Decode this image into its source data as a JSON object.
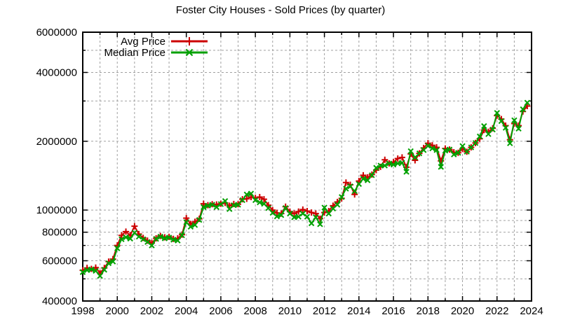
{
  "title": "Foster City Houses - Sold Prices (by quarter)",
  "colors": {
    "avg_series": "#cc0000",
    "median_series": "#00a000",
    "grid": "#a0a0a0",
    "axis": "#000000",
    "background": "#ffffff"
  },
  "legend": {
    "entries": [
      {
        "label": "Avg Price",
        "marker": "plus",
        "color": "#cc0000"
      },
      {
        "label": "Median Price",
        "marker": "x-cross",
        "color": "#00a000"
      }
    ],
    "position": "top-left-inside"
  },
  "chart_data": {
    "type": "line",
    "title": "Foster City Houses - Sold Prices (by quarter)",
    "xlabel": "",
    "ylabel": "",
    "grid": true,
    "legend_position": "top-left-inside",
    "x_axis": {
      "min": 1998,
      "max": 2024,
      "major_tick_step": 2,
      "minor_tick_step": 1,
      "tick_labels": [
        "1998",
        "2000",
        "2002",
        "2004",
        "2006",
        "2008",
        "2010",
        "2012",
        "2014",
        "2016",
        "2018",
        "2020",
        "2022",
        "2024"
      ]
    },
    "y_axis": {
      "scale": "log",
      "min": 400000,
      "max": 6000000,
      "labeled_ticks": [
        {
          "label": "400000",
          "value": 400000
        },
        {
          "label": "600000",
          "value": 600000
        },
        {
          "label": "800000",
          "value": 800000
        },
        {
          "label": "1000000",
          "value": 1000000
        },
        {
          "label": "2000000",
          "value": 2000000
        },
        {
          "label": "4000000",
          "value": 4000000
        },
        {
          "label": "6000000",
          "value": 6000000
        }
      ],
      "minor_gridline_values": [
        500000,
        600000,
        700000,
        800000,
        900000,
        1000000,
        2000000,
        3000000,
        4000000,
        5000000
      ],
      "minor_tick_values": [
        500000,
        700000,
        900000,
        3000000,
        5000000
      ]
    },
    "x": [
      1998,
      1998.25,
      1998.5,
      1998.75,
      1999,
      1999.25,
      1999.5,
      1999.75,
      2000,
      2000.25,
      2000.5,
      2000.75,
      2001,
      2001.25,
      2001.5,
      2001.75,
      2002,
      2002.25,
      2002.5,
      2002.75,
      2003,
      2003.25,
      2003.5,
      2003.75,
      2004,
      2004.25,
      2004.5,
      2004.75,
      2005,
      2005.25,
      2005.5,
      2005.75,
      2006,
      2006.25,
      2006.5,
      2006.75,
      2007,
      2007.25,
      2007.5,
      2007.75,
      2008,
      2008.25,
      2008.5,
      2008.75,
      2009,
      2009.25,
      2009.5,
      2009.75,
      2010,
      2010.25,
      2010.5,
      2010.75,
      2011,
      2011.25,
      2011.5,
      2011.75,
      2012,
      2012.25,
      2012.5,
      2012.75,
      2013,
      2013.25,
      2013.5,
      2013.75,
      2014,
      2014.25,
      2014.5,
      2014.75,
      2015,
      2015.25,
      2015.5,
      2015.75,
      2016,
      2016.25,
      2016.5,
      2016.75,
      2017,
      2017.25,
      2017.5,
      2017.75,
      2018,
      2018.25,
      2018.5,
      2018.75,
      2019,
      2019.25,
      2019.5,
      2019.75,
      2020,
      2020.25,
      2020.5,
      2020.75,
      2021,
      2021.25,
      2021.5,
      2021.75,
      2022,
      2022.25,
      2022.5,
      2022.75,
      2023,
      2023.25,
      2023.5,
      2023.75
    ],
    "series": [
      {
        "name": "Avg Price",
        "color": "#cc0000",
        "marker": "plus",
        "values": [
          545000,
          558000,
          553000,
          560000,
          530000,
          558000,
          595000,
          610000,
          700000,
          775000,
          805000,
          775000,
          850000,
          785000,
          755000,
          735000,
          718000,
          752000,
          770000,
          760000,
          763000,
          748000,
          752000,
          780000,
          922000,
          870000,
          888000,
          915000,
          1065000,
          1050000,
          1060000,
          1058000,
          1065000,
          1075000,
          1045000,
          1063000,
          1060000,
          1115000,
          1120000,
          1140000,
          1130000,
          1140000,
          1115000,
          1050000,
          1000000,
          972000,
          965000,
          1035000,
          985000,
          965000,
          985000,
          1005000,
          990000,
          975000,
          965000,
          917000,
          975000,
          990000,
          1045000,
          1085000,
          1125000,
          1320000,
          1290000,
          1170000,
          1340000,
          1420000,
          1390000,
          1430000,
          1495000,
          1545000,
          1660000,
          1600000,
          1620000,
          1680000,
          1700000,
          1540000,
          1760000,
          1650000,
          1770000,
          1870000,
          1960000,
          1920000,
          1880000,
          1640000,
          1860000,
          1840000,
          1790000,
          1780000,
          1850000,
          1800000,
          1880000,
          1965000,
          2050000,
          2240000,
          2200000,
          2280000,
          2590000,
          2500000,
          2340000,
          2030000,
          2390000,
          2340000,
          2700000,
          2850000
        ]
      },
      {
        "name": "Median Price",
        "color": "#00a000",
        "marker": "x-cross",
        "values": [
          535000,
          546000,
          550000,
          542000,
          515000,
          548000,
          585000,
          595000,
          680000,
          745000,
          760000,
          750000,
          795000,
          765000,
          745000,
          725000,
          700000,
          748000,
          765000,
          752000,
          758000,
          742000,
          735000,
          775000,
          885000,
          845000,
          860000,
          905000,
          1030000,
          1045000,
          1055000,
          1030000,
          1062000,
          1095000,
          1010000,
          1050000,
          1055000,
          1105000,
          1170000,
          1180000,
          1105000,
          1080000,
          1065000,
          1020000,
          972000,
          938000,
          950000,
          1020000,
          965000,
          930000,
          935000,
          965000,
          935000,
          875000,
          930000,
          867000,
          1025000,
          965000,
          1015000,
          1055000,
          1140000,
          1240000,
          1270000,
          1210000,
          1300000,
          1370000,
          1350000,
          1420000,
          1530000,
          1565000,
          1565000,
          1600000,
          1580000,
          1600000,
          1610000,
          1470000,
          1810000,
          1700000,
          1770000,
          1830000,
          1910000,
          1860000,
          1830000,
          1545000,
          1820000,
          1840000,
          1750000,
          1780000,
          1905000,
          1800000,
          1880000,
          1965000,
          2100000,
          2330000,
          2150000,
          2250000,
          2660000,
          2450000,
          2290000,
          1960000,
          2470000,
          2270000,
          2760000,
          2950000
        ]
      }
    ]
  }
}
